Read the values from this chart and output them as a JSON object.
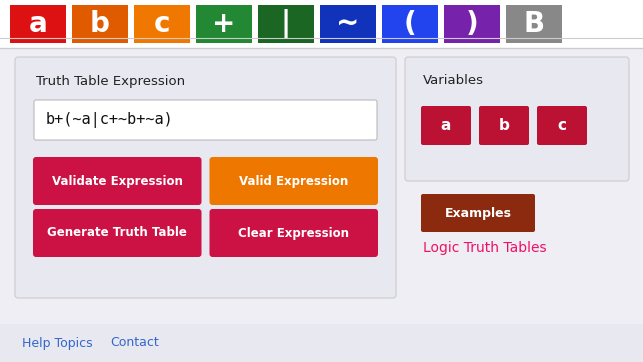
{
  "bg_color": "#eeeef4",
  "toolbar_bg": "#ffffff",
  "toolbar_buttons": [
    {
      "label": "a",
      "color": "#dd1111"
    },
    {
      "label": "b",
      "color": "#e05a00"
    },
    {
      "label": "c",
      "color": "#f07800"
    },
    {
      "label": "+",
      "color": "#228833"
    },
    {
      "label": "|",
      "color": "#1a6622"
    },
    {
      "label": "~",
      "color": "#1133bb"
    },
    {
      "label": "(",
      "color": "#2244ee"
    },
    {
      "label": ")",
      "color": "#7722aa"
    },
    {
      "label": "B",
      "color": "#888888"
    }
  ],
  "main_panel_bg": "#e8e8f0",
  "expr_label": "Truth Table Expression",
  "expr_text": "b+(~a|c+~b+~a)",
  "expr_box_bg": "#ffffff",
  "button1_label": "Validate Expression",
  "button1_color": "#cc1144",
  "button2_label": "Valid Expression",
  "button2_color": "#ee7700",
  "button3_label": "Generate Truth Table",
  "button3_color": "#cc1144",
  "button4_label": "Clear Expression",
  "button4_color": "#cc1144",
  "right_vars_panel_bg": "#e8e8f0",
  "vars_label": "Variables",
  "var_buttons": [
    "a",
    "b",
    "c"
  ],
  "var_btn_color": "#bb1133",
  "examples_label": "Examples",
  "examples_color": "#8b2a0e",
  "logic_label": "Logic Truth Tables",
  "logic_color": "#ee1166",
  "footer_bg": "#e8e8f0",
  "help_label": "Help Topics",
  "contact_label": "Contact",
  "link_color": "#3366cc",
  "separator_color": "#cccccc"
}
